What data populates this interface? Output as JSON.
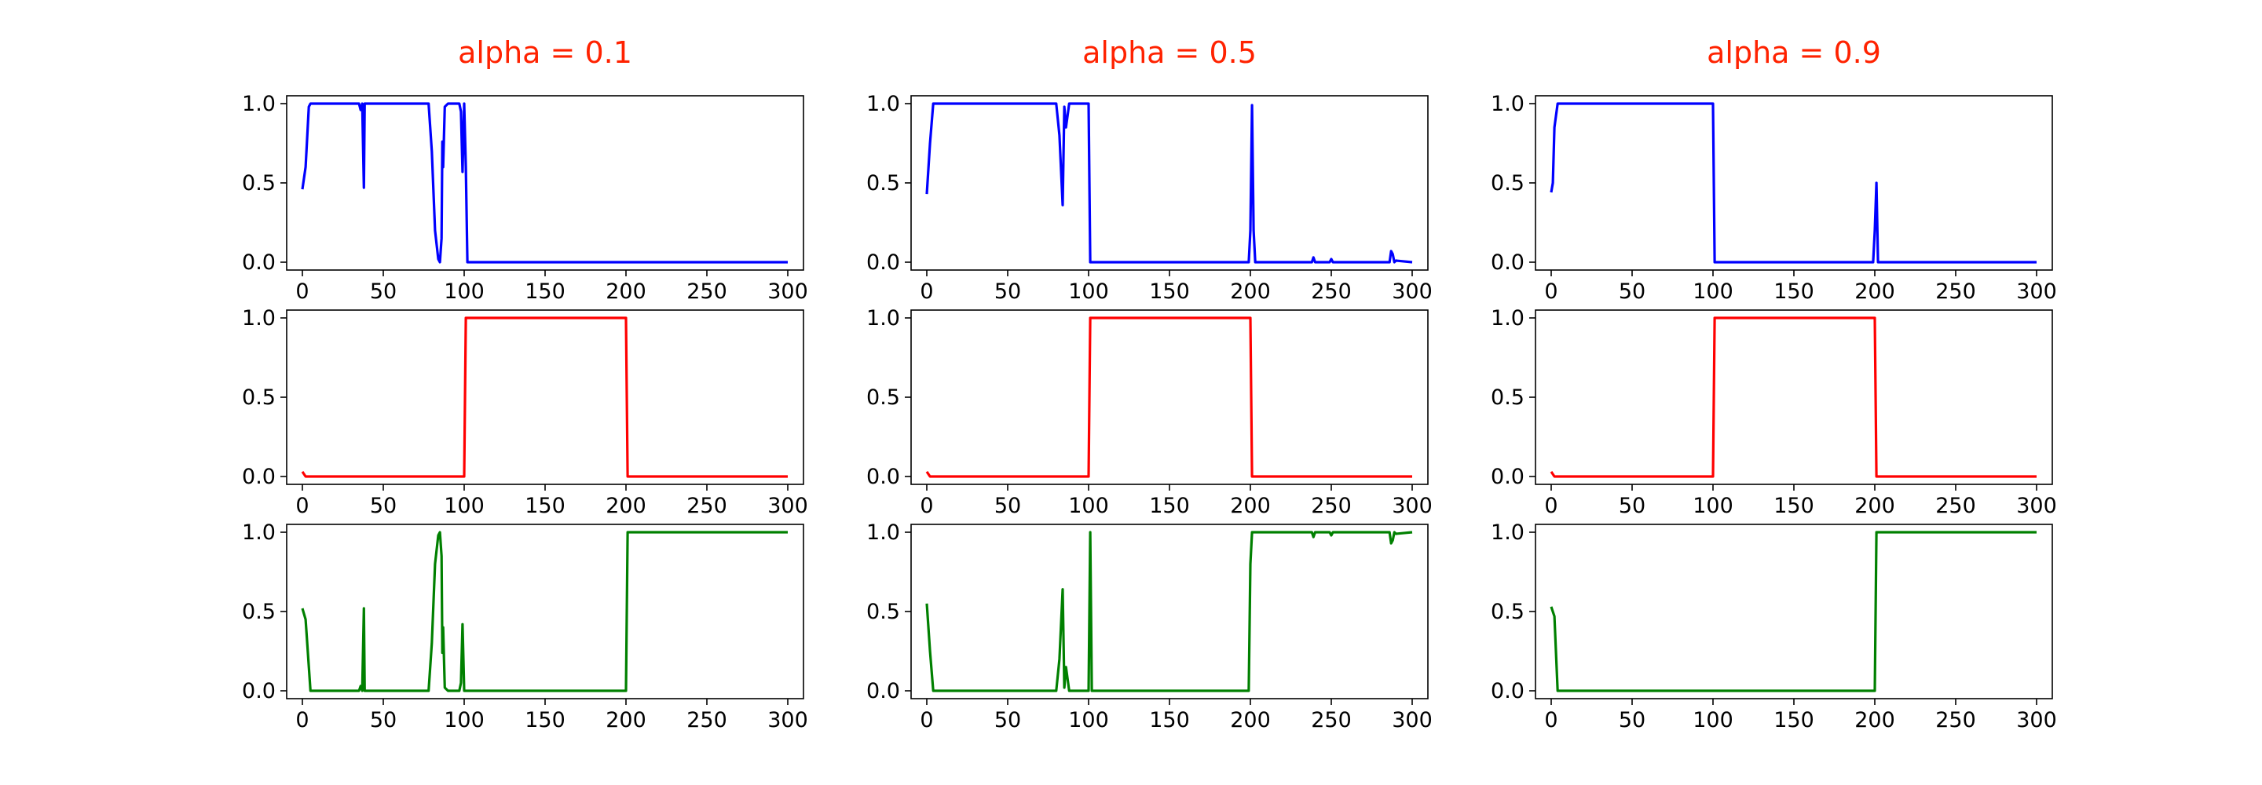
{
  "colors": {
    "title": "#ff2200",
    "series": [
      "#0000ff",
      "#ff0000",
      "#008000"
    ]
  },
  "chart_data": [
    {
      "type": "line",
      "title": "alpha = 0.1",
      "xlim": [
        0,
        300
      ],
      "ylim": [
        0,
        1
      ],
      "xticks": [
        "0",
        "50",
        "100",
        "150",
        "200",
        "250",
        "300"
      ],
      "yticks": [
        "0.0",
        "0.5",
        "1.0"
      ],
      "series": [
        {
          "name": "blue",
          "points": [
            [
              0,
              0.46
            ],
            [
              2,
              0.6
            ],
            [
              4,
              0.98
            ],
            [
              5,
              1.0
            ],
            [
              35,
              1.0
            ],
            [
              36,
              0.96
            ],
            [
              37,
              1.0
            ],
            [
              38,
              0.47
            ],
            [
              38.5,
              1.0
            ],
            [
              40,
              1.0
            ],
            [
              78,
              1.0
            ],
            [
              80,
              0.7
            ],
            [
              82,
              0.2
            ],
            [
              84,
              0.02
            ],
            [
              85,
              0.0
            ],
            [
              86,
              0.15
            ],
            [
              86.5,
              0.76
            ],
            [
              87,
              0.6
            ],
            [
              88,
              0.98
            ],
            [
              90,
              1.0
            ],
            [
              97,
              1.0
            ],
            [
              98,
              0.95
            ],
            [
              99,
              0.57
            ],
            [
              100,
              1.0
            ],
            [
              101,
              0.6
            ],
            [
              102,
              0.0
            ],
            [
              300,
              0.0
            ]
          ]
        },
        {
          "name": "red",
          "points": [
            [
              0,
              0.03
            ],
            [
              2,
              0.0
            ],
            [
              100,
              0.0
            ],
            [
              101,
              1.0
            ],
            [
              200,
              1.0
            ],
            [
              201,
              0.0
            ],
            [
              300,
              0.0
            ]
          ]
        },
        {
          "name": "green",
          "points": [
            [
              0,
              0.52
            ],
            [
              2,
              0.45
            ],
            [
              5,
              0.0
            ],
            [
              35,
              0.0
            ],
            [
              36,
              0.03
            ],
            [
              37,
              0.0
            ],
            [
              38,
              0.52
            ],
            [
              38.5,
              0.0
            ],
            [
              78,
              0.0
            ],
            [
              80,
              0.3
            ],
            [
              82,
              0.8
            ],
            [
              84,
              0.98
            ],
            [
              85,
              1.0
            ],
            [
              86,
              0.85
            ],
            [
              86.5,
              0.24
            ],
            [
              87,
              0.4
            ],
            [
              88,
              0.02
            ],
            [
              90,
              0.0
            ],
            [
              97,
              0.0
            ],
            [
              98,
              0.05
            ],
            [
              99,
              0.42
            ],
            [
              100,
              0.0
            ],
            [
              200,
              0.0
            ],
            [
              201,
              1.0
            ],
            [
              300,
              1.0
            ]
          ]
        }
      ]
    },
    {
      "type": "line",
      "title": "alpha = 0.5",
      "xlim": [
        0,
        300
      ],
      "ylim": [
        0,
        1
      ],
      "xticks": [
        "0",
        "50",
        "100",
        "150",
        "200",
        "250",
        "300"
      ],
      "yticks": [
        "0.0",
        "0.5",
        "1.0"
      ],
      "series": [
        {
          "name": "blue",
          "points": [
            [
              0,
              0.43
            ],
            [
              2,
              0.75
            ],
            [
              4,
              1.0
            ],
            [
              80,
              1.0
            ],
            [
              82,
              0.8
            ],
            [
              84,
              0.36
            ],
            [
              85,
              0.98
            ],
            [
              86,
              0.85
            ],
            [
              88,
              1.0
            ],
            [
              100,
              1.0
            ],
            [
              101,
              0.0
            ],
            [
              199,
              0.0
            ],
            [
              200,
              0.2
            ],
            [
              201,
              0.99
            ],
            [
              202,
              0.2
            ],
            [
              203,
              0.0
            ],
            [
              238,
              0.0
            ],
            [
              239,
              0.03
            ],
            [
              240,
              0.0
            ],
            [
              249,
              0.0
            ],
            [
              250,
              0.02
            ],
            [
              251,
              0.0
            ],
            [
              286,
              0.0
            ],
            [
              287,
              0.07
            ],
            [
              288,
              0.05
            ],
            [
              289,
              0.0
            ],
            [
              290,
              0.01
            ],
            [
              300,
              0.0
            ]
          ]
        },
        {
          "name": "red",
          "points": [
            [
              0,
              0.03
            ],
            [
              2,
              0.0
            ],
            [
              100,
              0.0
            ],
            [
              101,
              1.0
            ],
            [
              200,
              1.0
            ],
            [
              201,
              0.0
            ],
            [
              300,
              0.0
            ]
          ]
        },
        {
          "name": "green",
          "points": [
            [
              0,
              0.55
            ],
            [
              2,
              0.25
            ],
            [
              4,
              0.0
            ],
            [
              80,
              0.0
            ],
            [
              82,
              0.2
            ],
            [
              84,
              0.64
            ],
            [
              85,
              0.02
            ],
            [
              86,
              0.15
            ],
            [
              88,
              0.0
            ],
            [
              100,
              0.0
            ],
            [
              101,
              1.0
            ],
            [
              102,
              0.0
            ],
            [
              199,
              0.0
            ],
            [
              200,
              0.8
            ],
            [
              201,
              1.0
            ],
            [
              238,
              1.0
            ],
            [
              239,
              0.97
            ],
            [
              240,
              1.0
            ],
            [
              249,
              1.0
            ],
            [
              250,
              0.98
            ],
            [
              251,
              1.0
            ],
            [
              286,
              1.0
            ],
            [
              287,
              0.93
            ],
            [
              288,
              0.95
            ],
            [
              289,
              1.0
            ],
            [
              290,
              0.99
            ],
            [
              300,
              1.0
            ]
          ]
        }
      ]
    },
    {
      "type": "line",
      "title": "alpha = 0.9",
      "xlim": [
        0,
        300
      ],
      "ylim": [
        0,
        1
      ],
      "xticks": [
        "0",
        "50",
        "100",
        "150",
        "200",
        "250",
        "300"
      ],
      "yticks": [
        "0.0",
        "0.5",
        "1.0"
      ],
      "series": [
        {
          "name": "blue",
          "points": [
            [
              0,
              0.44
            ],
            [
              1,
              0.5
            ],
            [
              2,
              0.85
            ],
            [
              4,
              1.0
            ],
            [
              100,
              1.0
            ],
            [
              101,
              0.0
            ],
            [
              199,
              0.0
            ],
            [
              200,
              0.2
            ],
            [
              201,
              0.5
            ],
            [
              202,
              0.0
            ],
            [
              300,
              0.0
            ]
          ]
        },
        {
          "name": "red",
          "points": [
            [
              0,
              0.03
            ],
            [
              2,
              0.0
            ],
            [
              100,
              0.0
            ],
            [
              101,
              1.0
            ],
            [
              200,
              1.0
            ],
            [
              201,
              0.0
            ],
            [
              300,
              0.0
            ]
          ]
        },
        {
          "name": "green",
          "points": [
            [
              0,
              0.53
            ],
            [
              2,
              0.47
            ],
            [
              4,
              0.0
            ],
            [
              200,
              0.0
            ],
            [
              201,
              1.0
            ],
            [
              300,
              1.0
            ]
          ]
        }
      ]
    }
  ]
}
